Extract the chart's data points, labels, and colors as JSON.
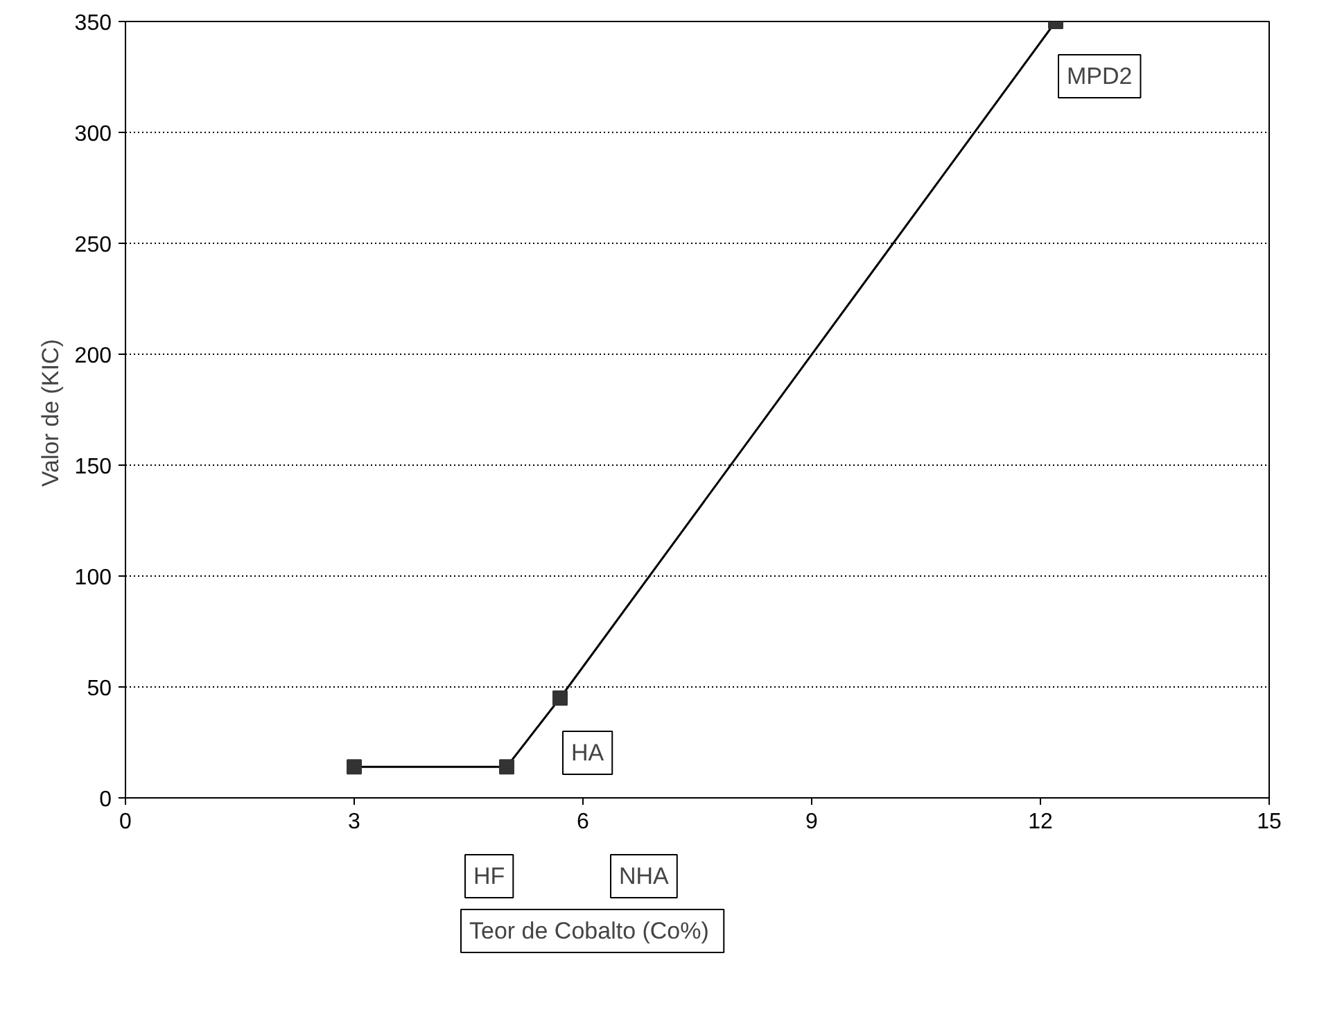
{
  "chart_data": {
    "type": "line",
    "xlabel": "Teor de Cobalto  (Co%)",
    "ylabel": "Valor de  (KIC)",
    "x": [
      3,
      5,
      5.7,
      12.2
    ],
    "values": [
      14,
      14,
      45,
      350
    ],
    "color": "#000000",
    "marker": "square",
    "line_style": "solid",
    "xlim": [
      0,
      15
    ],
    "xticks": [
      0,
      3,
      6,
      9,
      12,
      15
    ],
    "ylim": [
      0,
      350
    ],
    "yticks": [
      0,
      50,
      100,
      150,
      200,
      250,
      300,
      350
    ],
    "grid": "y",
    "annotations": [
      "HF",
      "NHA",
      {
        "text": "HA",
        "x": 5.7,
        "y": 45
      },
      {
        "text": "MPD2",
        "x": 12.2,
        "y": 350
      }
    ]
  }
}
